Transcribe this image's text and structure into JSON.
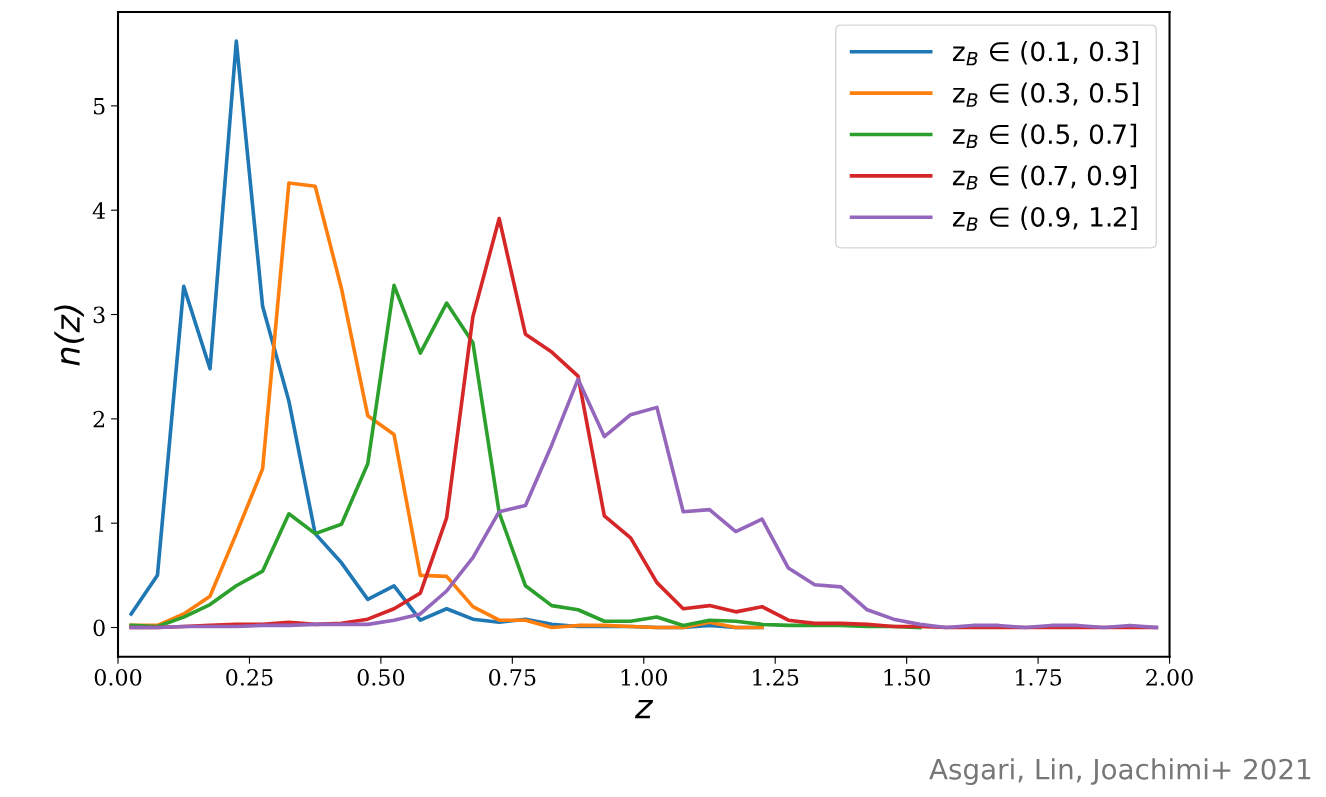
{
  "chart_data": {
    "type": "line",
    "xlabel": "z",
    "ylabel": "n(z)",
    "x": [
      0.025,
      0.075,
      0.125,
      0.175,
      0.225,
      0.275,
      0.325,
      0.375,
      0.425,
      0.475,
      0.525,
      0.575,
      0.625,
      0.675,
      0.725,
      0.775,
      0.825,
      0.875,
      0.925,
      0.975,
      1.025,
      1.075,
      1.125,
      1.175,
      1.225,
      1.275,
      1.325,
      1.375,
      1.425,
      1.475,
      1.525,
      1.575,
      1.625,
      1.675,
      1.725,
      1.775,
      1.825,
      1.875,
      1.925,
      1.975
    ],
    "series": [
      {
        "name": "z$_{B}$ ∈ (0.1, 0.3]",
        "color": "#1f77b4",
        "values": [
          0.13,
          0.5,
          3.27,
          2.48,
          5.62,
          3.08,
          2.17,
          0.9,
          0.62,
          0.27,
          0.4,
          0.07,
          0.18,
          0.08,
          0.05,
          0.08,
          0.03,
          0.01,
          0.01,
          0.01,
          0,
          0,
          0.02,
          0,
          0,
          null,
          null,
          null,
          null,
          null,
          null,
          null,
          null,
          null,
          null,
          null,
          null,
          null,
          null,
          null
        ]
      },
      {
        "name": "z$_{B}$ ∈ (0.3, 0.5]",
        "color": "#ff7f0e",
        "values": [
          0.02,
          0.02,
          0.13,
          0.3,
          0.9,
          1.52,
          4.26,
          4.23,
          3.25,
          2.03,
          1.85,
          0.5,
          0.49,
          0.2,
          0.07,
          0.07,
          0,
          0.02,
          0.02,
          0.01,
          0,
          0,
          0.05,
          0,
          0,
          null,
          null,
          null,
          null,
          null,
          null,
          null,
          null,
          null,
          null,
          null,
          null,
          null,
          null,
          null
        ]
      },
      {
        "name": "z$_{B}$ ∈ (0.5, 0.7]",
        "color": "#2ca02c",
        "values": [
          0.02,
          0.01,
          0.1,
          0.22,
          0.4,
          0.54,
          1.09,
          0.9,
          0.99,
          1.57,
          3.28,
          2.63,
          3.11,
          2.73,
          1.1,
          0.4,
          0.21,
          0.17,
          0.06,
          0.06,
          0.1,
          0.02,
          0.07,
          0.06,
          0.03,
          0.02,
          0.02,
          0.02,
          0.01,
          0.01,
          0,
          null,
          null,
          null,
          null,
          null,
          null,
          null,
          null,
          null
        ]
      },
      {
        "name": "z$_{B}$ ∈ (0.7, 0.9]",
        "color": "#d62728",
        "values": [
          0,
          0,
          0.01,
          0.02,
          0.03,
          0.03,
          0.05,
          0.03,
          0.04,
          0.08,
          0.18,
          0.33,
          1.05,
          2.98,
          3.92,
          2.81,
          2.64,
          2.41,
          1.07,
          0.86,
          0.43,
          0.18,
          0.21,
          0.15,
          0.2,
          0.07,
          0.04,
          0.04,
          0.03,
          0.01,
          0.01,
          0,
          0,
          0,
          0,
          0,
          0,
          0,
          0,
          0
        ]
      },
      {
        "name": "z$_{B}$ ∈ (0.9, 1.2]",
        "color": "#9467bd",
        "values": [
          0,
          0,
          0.01,
          0.01,
          0.01,
          0.02,
          0.02,
          0.03,
          0.03,
          0.03,
          0.07,
          0.13,
          0.35,
          0.67,
          1.11,
          1.17,
          1.75,
          2.38,
          1.83,
          2.04,
          2.11,
          1.11,
          1.13,
          0.92,
          1.04,
          0.57,
          0.41,
          0.39,
          0.17,
          0.08,
          0.03,
          0,
          0.02,
          0.02,
          0,
          0.02,
          0.02,
          0,
          0.02,
          0
        ]
      }
    ],
    "xlim": [
      0,
      2
    ],
    "xticks": [
      {
        "value": 0,
        "label": "0.00"
      },
      {
        "value": 0.25,
        "label": "0.25"
      },
      {
        "value": 0.5,
        "label": "0.50"
      },
      {
        "value": 0.75,
        "label": "0.75"
      },
      {
        "value": 1,
        "label": "1.00"
      },
      {
        "value": 1.25,
        "label": "1.25"
      },
      {
        "value": 1.5,
        "label": "1.50"
      },
      {
        "value": 1.75,
        "label": "1.75"
      },
      {
        "value": 2,
        "label": "2.00"
      }
    ],
    "ylim": [
      -0.28,
      5.9
    ],
    "yticks": [
      0,
      1,
      2,
      3,
      4,
      5
    ],
    "grid": false,
    "legend": "top right",
    "marker": "none",
    "line_style": "solid",
    "annotations": [
      "Asgari, Lin, Joachimi+ 2021"
    ]
  }
}
